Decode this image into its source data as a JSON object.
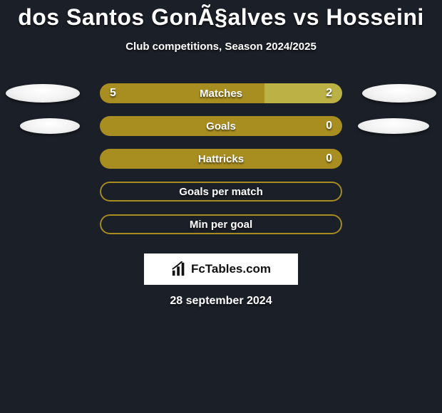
{
  "title": "dos Santos GonÃ§alves vs Hosseini",
  "subtitle": "Club competitions, Season 2024/2025",
  "date": "28 september 2024",
  "logo_text": "FcTables.com",
  "colors": {
    "background": "#1b1f27",
    "bar_left": "#a88d21",
    "bar_right": "#bbb145",
    "bar_border": "#a88d21",
    "text": "#ffffff"
  },
  "fontsize": {
    "title": 32,
    "subtitle": 15,
    "bar_label": 15,
    "bar_value": 16,
    "date": 16
  },
  "avatars": {
    "left_row": 0,
    "right_row": 0,
    "left_row2": 1,
    "right_row2": 1
  },
  "bars": [
    {
      "label": "Matches",
      "left_val": "5",
      "right_val": "2",
      "left_pct": 68,
      "right_pct": 32,
      "left_avatar": true,
      "right_avatar": true,
      "border_only": false
    },
    {
      "label": "Goals",
      "left_val": "",
      "right_val": "0",
      "left_pct": 100,
      "right_pct": 0,
      "left_avatar": true,
      "right_avatar": true,
      "border_only": false
    },
    {
      "label": "Hattricks",
      "left_val": "",
      "right_val": "0",
      "left_pct": 100,
      "right_pct": 0,
      "left_avatar": false,
      "right_avatar": false,
      "border_only": false
    },
    {
      "label": "Goals per match",
      "left_val": "",
      "right_val": "",
      "left_pct": 0,
      "right_pct": 0,
      "left_avatar": false,
      "right_avatar": false,
      "border_only": true
    },
    {
      "label": "Min per goal",
      "left_val": "",
      "right_val": "",
      "left_pct": 0,
      "right_pct": 0,
      "left_avatar": false,
      "right_avatar": false,
      "border_only": true
    }
  ]
}
